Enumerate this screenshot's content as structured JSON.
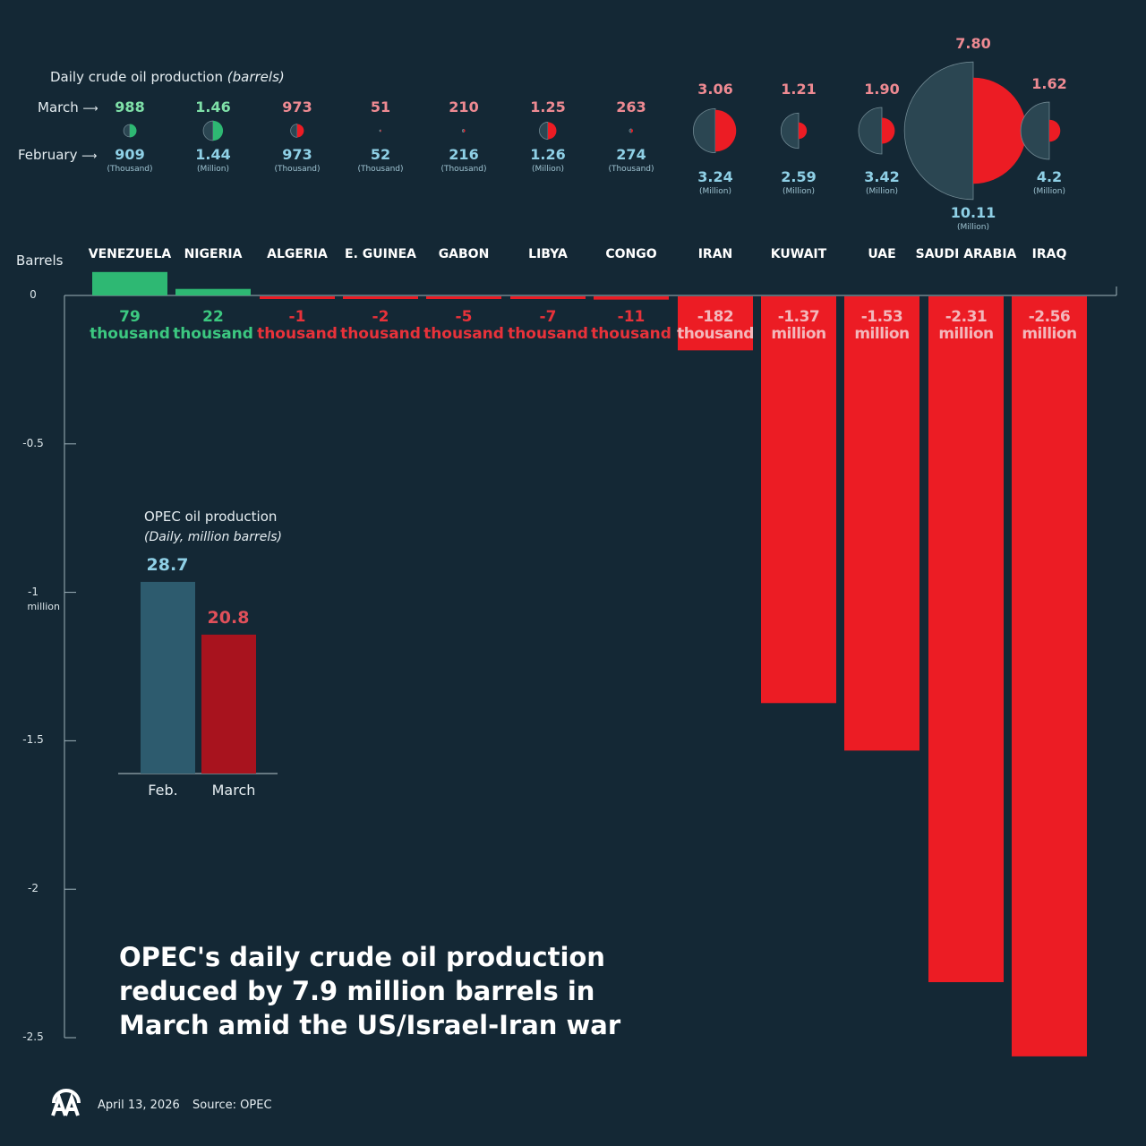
{
  "chart_data": [
    {
      "type": "bar",
      "title": "OPEC's daily crude oil production reduced by 7.9 million barrels in March amid the US/Israel-Iran war",
      "ylabel": "Barrels",
      "ylim": [
        -2.5,
        0
      ],
      "yticks": [
        {
          "v": 0,
          "label": "0"
        },
        {
          "v": -0.5,
          "label": "-0.5"
        },
        {
          "v": -1,
          "label": "-1",
          "sub": "million"
        },
        {
          "v": -1.5,
          "label": "-1.5"
        },
        {
          "v": -2,
          "label": "-2"
        },
        {
          "v": -2.5,
          "label": "-2.5"
        }
      ],
      "categories": [
        "VENEZUELA",
        "NIGERIA",
        "ALGERIA",
        "E. GUINEA",
        "GABON",
        "LIBYA",
        "CONGO",
        "IRAN",
        "KUWAIT",
        "UAE",
        "SAUDI ARABIA",
        "IRAQ"
      ],
      "values_million": [
        0.079,
        0.022,
        -0.001,
        -0.002,
        -0.005,
        -0.007,
        -0.011,
        -0.182,
        -1.37,
        -1.53,
        -2.31,
        -2.56
      ],
      "labels": [
        [
          "79",
          "thousand"
        ],
        [
          "22",
          "thousand"
        ],
        [
          "-1",
          "thousand"
        ],
        [
          "-2",
          "thousand"
        ],
        [
          "-5",
          "thousand"
        ],
        [
          "-7",
          "thousand"
        ],
        [
          "-11",
          "thousand"
        ],
        [
          "-182",
          "thousand"
        ],
        [
          "-1.37",
          "million"
        ],
        [
          "-1.53",
          "million"
        ],
        [
          "-2.31",
          "million"
        ],
        [
          "-2.56",
          "million"
        ]
      ],
      "colors": {
        "increase": "#2eb873",
        "decrease": "#ec1c24",
        "increase_text": "#3cc880",
        "decrease_text": "#e8323a"
      }
    },
    {
      "type": "bubble",
      "title": "Daily crude oil production",
      "title_italic": "(barrels)",
      "row_labels": {
        "march": "March",
        "february": "February"
      },
      "march": [
        "988",
        "1.46",
        "973",
        "51",
        "210",
        "1.25",
        "263",
        "3.06",
        "1.21",
        "1.90",
        "7.80",
        "1.62"
      ],
      "february": [
        "909",
        "1.44",
        "973",
        "52",
        "216",
        "1.26",
        "274",
        "3.24",
        "2.59",
        "3.42",
        "10.11",
        "4.2"
      ],
      "units": [
        "(Thousand)",
        "(Million)",
        "(Thousand)",
        "(Thousand)",
        "(Thousand)",
        "(Million)",
        "(Thousand)",
        "(Million)",
        "(Million)",
        "(Million)",
        "(Million)",
        "(Million)"
      ],
      "march_million": [
        0.988,
        1.46,
        0.973,
        0.051,
        0.21,
        1.25,
        0.263,
        3.06,
        1.21,
        1.9,
        7.8,
        1.62
      ],
      "february_million": [
        0.909,
        1.44,
        0.973,
        0.052,
        0.216,
        1.26,
        0.274,
        3.24,
        2.59,
        3.42,
        10.11,
        4.2
      ],
      "colors": {
        "february": "#2b4652",
        "up": "#2eb873",
        "down": "#ec1c24",
        "march_up_text": "#7fe0a8",
        "march_down_text": "#ee8a92",
        "february_text": "#8fd0e6"
      }
    },
    {
      "type": "bar",
      "title": "OPEC oil production",
      "subtitle": "(Daily, million barrels)",
      "categories": [
        "Feb.",
        "March"
      ],
      "values": [
        28.7,
        20.8
      ],
      "labels": [
        "28.7",
        "20.8"
      ],
      "colors": [
        "#2d5b6e",
        "#a8131e"
      ]
    }
  ],
  "footer": {
    "date": "April 13, 2026",
    "source": "Source: OPEC",
    "logo": "AA"
  }
}
